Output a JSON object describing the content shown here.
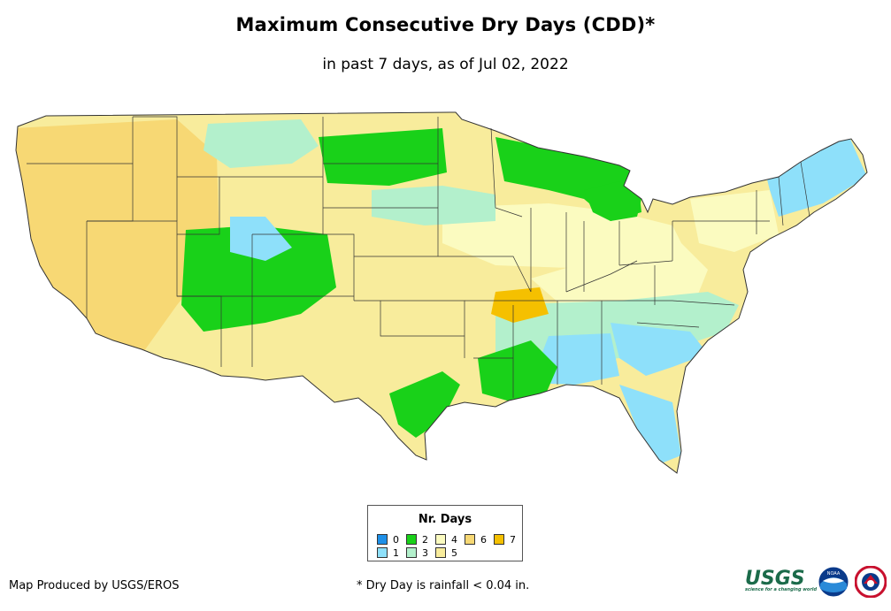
{
  "title": "Maximum Consecutive Dry Days (CDD)*",
  "subtitle": "in past 7 days, as of Jul 02, 2022",
  "legend": {
    "title": "Nr. Days",
    "items": [
      {
        "label": "0",
        "color": "#1e90e8"
      },
      {
        "label": "1",
        "color": "#8ee0fa"
      },
      {
        "label": "2",
        "color": "#19d119"
      },
      {
        "label": "3",
        "color": "#b3f0cc"
      },
      {
        "label": "4",
        "color": "#fbfbc0"
      },
      {
        "label": "5",
        "color": "#f8ec9c"
      },
      {
        "label": "6",
        "color": "#f7d874"
      },
      {
        "label": "7",
        "color": "#f5c000"
      }
    ]
  },
  "footer": {
    "credit": "Map Produced by USGS/EROS",
    "footnote": "* Dry Day is rainfall < 0.04 in."
  },
  "logos": {
    "usgs": "USGS",
    "usgs_tagline": "science for a changing world",
    "noaa": "NOAA",
    "nws": "NATIONAL WEATHER SERVICE"
  }
}
